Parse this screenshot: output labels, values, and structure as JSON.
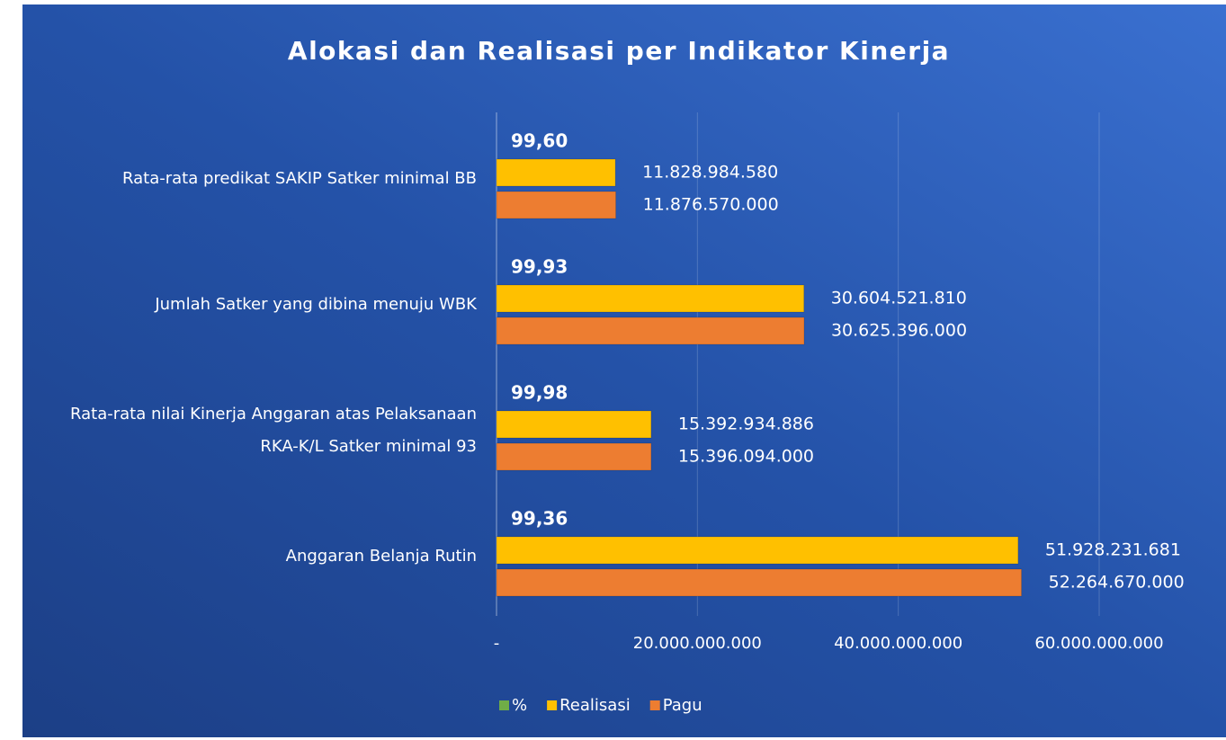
{
  "chart_data": {
    "type": "hbar",
    "title": "Alokasi dan Realisasi per Indikator Kinerja",
    "categories": [
      "Rata-rata predikat SAKIP Satker minimal BB",
      "Jumlah Satker yang dibina menuju WBK",
      "Rata-rata nilai Kinerja Anggaran atas Pelaksanaan RKA-K/L Satker minimal 93",
      "Anggaran Belanja Rutin"
    ],
    "series": [
      {
        "name": "%",
        "color": "#70ad47",
        "values": [
          99.6,
          99.93,
          99.98,
          99.36
        ],
        "value_labels": [
          "99,60",
          "99,93",
          "99,98",
          "99,36"
        ]
      },
      {
        "name": "Realisasi",
        "color": "#ffc000",
        "values": [
          11828984580,
          30604521810,
          15392934886,
          51928231681
        ],
        "value_labels": [
          "11.828.984.580",
          "30.604.521.810",
          "15.392.934.886",
          "51.928.231.681"
        ]
      },
      {
        "name": "Pagu",
        "color": "#ed7d31",
        "values": [
          11876570000,
          30625396000,
          15396094000,
          52264670000
        ],
        "value_labels": [
          "11.876.570.000",
          "30.625.396.000",
          "15.396.094.000",
          "52.264.670.000"
        ]
      }
    ],
    "xlim": [
      0,
      60000000000
    ],
    "xticks": [
      {
        "value": 0,
        "label": "-"
      },
      {
        "value": 20000000000,
        "label": "20.000.000.000"
      },
      {
        "value": 40000000000,
        "label": "40.000.000.000"
      },
      {
        "value": 60000000000,
        "label": "60.000.000.000"
      }
    ],
    "grid": true,
    "legend": "bottom"
  }
}
